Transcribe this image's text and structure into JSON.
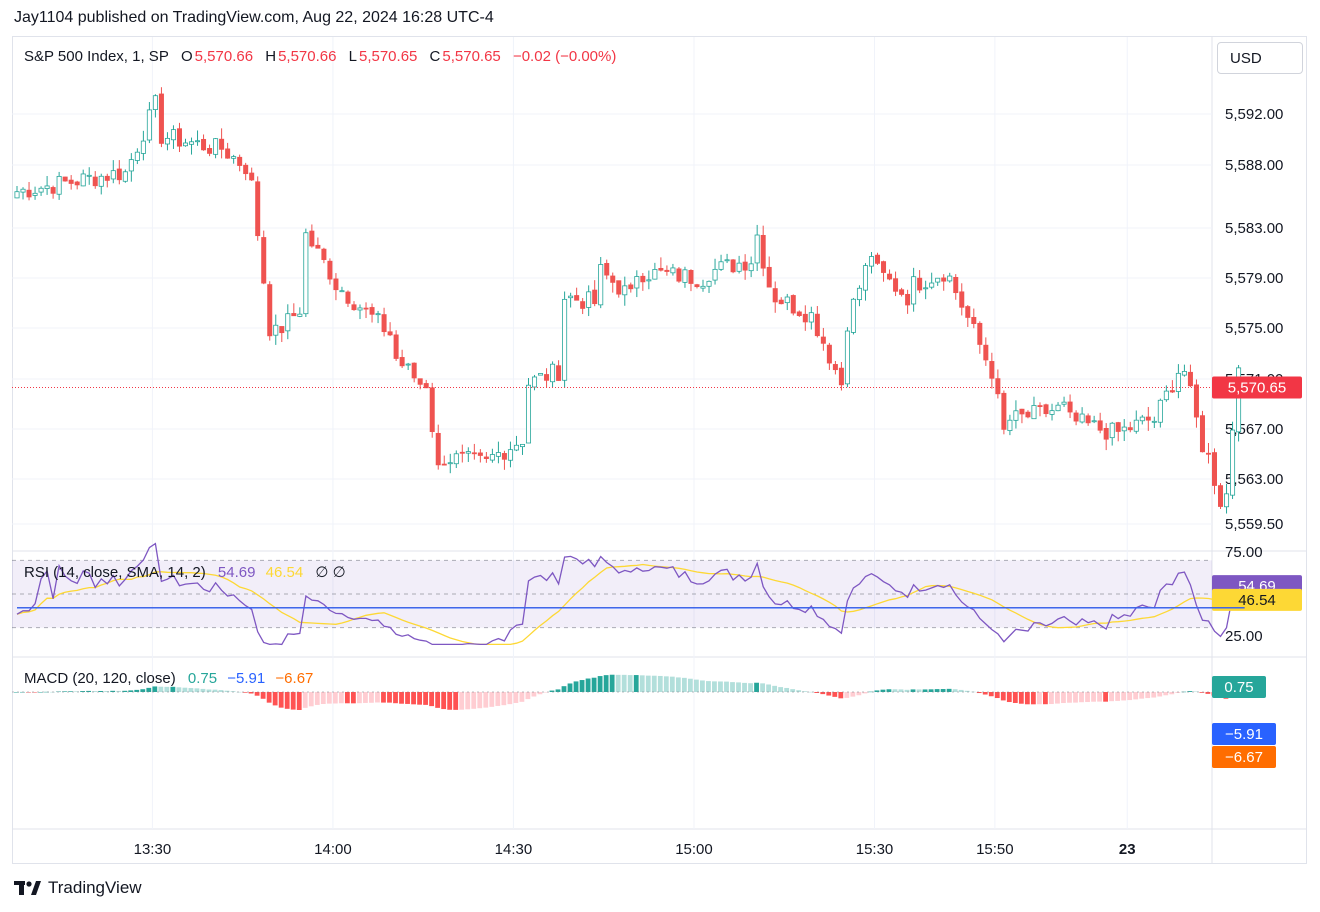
{
  "header": {
    "published": "Jay1104 published on TradingView.com, Aug 22, 2024 16:28 UTC-4"
  },
  "legend": {
    "symbol": "S&P 500 Index, 1, SP",
    "o_label": "O",
    "o_value": "5,570.66",
    "h_label": "H",
    "h_value": "5,570.66",
    "l_label": "L",
    "l_value": "5,570.65",
    "c_label": "C",
    "c_value": "5,570.65",
    "change": "−0.02 (−0.00%)"
  },
  "currency_button": "USD",
  "rsi_legend": {
    "name": "RSI (14, close, SMA, 14, 2)",
    "rsi": "54.69",
    "sma": "46.54",
    "extra": "∅  ∅"
  },
  "macd_legend": {
    "name": "MACD (20, 120, close)",
    "hist": "0.75",
    "macd": "−5.91",
    "signal": "−6.67"
  },
  "brand": {
    "name": "TradingView"
  },
  "colors": {
    "up": "#26a69a",
    "down": "#ef5350",
    "rsi": "#7e57c2",
    "rsi_sma": "#fdd835",
    "macd": "#2962ff",
    "signal": "#ff6d00",
    "last_price": "#f23645"
  },
  "chart_data": [
    {
      "type": "candlestick",
      "title": "S&P 500 Index, 1, SP",
      "x_ticks": [
        "13:30",
        "14:00",
        "14:30",
        "15:00",
        "15:30",
        "15:50",
        "23"
      ],
      "y_ticks": [
        5559.5,
        5563.0,
        5567.0,
        5571.0,
        5575.0,
        5579.0,
        5583.0,
        5588.0,
        5592.0
      ],
      "y_tick_labels": [
        "5,559.50",
        "5,563.00",
        "5,567.00",
        "5,571.00",
        "5,575.00",
        "5,579.00",
        "5,583.00",
        "5,588.00",
        "5,592.00"
      ],
      "last_price": 5570.65,
      "last_price_label": "5,570.65",
      "ylim": [
        5557.5,
        5599
      ],
      "segments": [
        {
          "minutes": 18,
          "start": 5586.5,
          "end": 5588.0
        },
        {
          "minutes": 6,
          "start": 5588.0,
          "end": 5593.5
        },
        {
          "minutes": 10,
          "start": 5591.0,
          "end": 5590.0
        },
        {
          "minutes": 5,
          "start": 5590.0,
          "end": 5588.5
        },
        {
          "minutes": 4,
          "start": 5587.0,
          "end": 5575.5
        },
        {
          "minutes": 5,
          "start": 5575.0,
          "end": 5577.0
        },
        {
          "minutes": 5,
          "start": 5583.0,
          "end": 5580.0
        },
        {
          "minutes": 10,
          "start": 5579.0,
          "end": 5575.0
        },
        {
          "minutes": 5,
          "start": 5573.0,
          "end": 5571.0
        },
        {
          "minutes": 3,
          "start": 5571.0,
          "end": 5564.0
        },
        {
          "minutes": 8,
          "start": 5565.0,
          "end": 5564.5
        },
        {
          "minutes": 6,
          "start": 5565.0,
          "end": 5566.5
        },
        {
          "minutes": 6,
          "start": 5571.0,
          "end": 5572.0
        },
        {
          "minutes": 6,
          "start": 5578.0,
          "end": 5577.5
        },
        {
          "minutes": 6,
          "start": 5580.0,
          "end": 5578.0
        },
        {
          "minutes": 12,
          "start": 5580.0,
          "end": 5579.5
        },
        {
          "minutes": 8,
          "start": 5580.0,
          "end": 5581.0
        },
        {
          "minutes": 3,
          "start": 5583.0,
          "end": 5579.0
        },
        {
          "minutes": 7,
          "start": 5578.0,
          "end": 5576.5
        },
        {
          "minutes": 5,
          "start": 5575.5,
          "end": 5571.0
        },
        {
          "minutes": 5,
          "start": 5576.0,
          "end": 5581.5
        },
        {
          "minutes": 6,
          "start": 5580.0,
          "end": 5578.0
        },
        {
          "minutes": 6,
          "start": 5579.0,
          "end": 5580.0
        },
        {
          "minutes": 7,
          "start": 5579.5,
          "end": 5573.0
        },
        {
          "minutes": 3,
          "start": 5572.0,
          "end": 5567.0
        },
        {
          "minutes": 10,
          "start": 5568.0,
          "end": 5569.0
        },
        {
          "minutes": 8,
          "start": 5568.0,
          "end": 5567.0
        },
        {
          "minutes": 6,
          "start": 5567.0,
          "end": 5568.0
        },
        {
          "minutes": 5,
          "start": 5568.0,
          "end": 5572.0
        },
        {
          "minutes": 4,
          "start": 5572.0,
          "end": 5566.0
        },
        {
          "minutes": 3,
          "start": 5565.0,
          "end": 5561.5
        },
        {
          "minutes": 3,
          "start": 5562.0,
          "end": 5573.0
        },
        {
          "minutes": 1,
          "start": 5572.5,
          "end": 5570.65
        }
      ]
    },
    {
      "type": "line",
      "title": "RSI (14, close, SMA, 14, 2)",
      "y_ticks_labels": [
        "75.00",
        "25.00"
      ],
      "ylim": [
        25,
        75
      ],
      "band": [
        30,
        70
      ],
      "series": [
        {
          "name": "RSI",
          "last": 54.69
        },
        {
          "name": "SMA",
          "last": 46.54
        }
      ]
    },
    {
      "type": "bar+line",
      "title": "MACD (20, 120, close)",
      "series": [
        {
          "name": "Histogram",
          "last": 0.75
        },
        {
          "name": "MACD",
          "last": -5.91
        },
        {
          "name": "Signal",
          "last": -6.67
        }
      ]
    }
  ]
}
